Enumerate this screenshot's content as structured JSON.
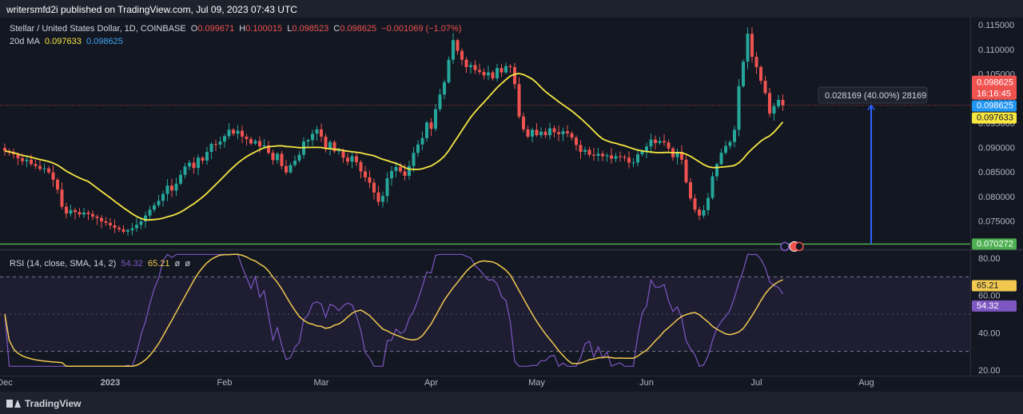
{
  "header": {
    "published": "writersmfd2i published on TradingView.com, Jul 09, 2023 07:43 UTC"
  },
  "legend": {
    "symbol": "Stellar / United States Dollar, 1D, COINBASE",
    "o_label": "O",
    "o_value": "0.099671",
    "h_label": "H",
    "h_value": "0.100015",
    "l_label": "L",
    "l_value": "0.098523",
    "c_label": "C",
    "c_value": "0.098625",
    "change": "−0.001069 (−1.07%)",
    "ma_label": "20d MA",
    "ma_value1": "0.097633",
    "ma_value2": "0.098625",
    "rsi_label": "RSI (14, close, SMA, 14, 2)",
    "rsi_value": "54.32",
    "rsi_ma_value": "65.21",
    "rsi_extra1": "ø",
    "rsi_extra2": "ø"
  },
  "measure_label": "0.028169 (40.00%) 28169",
  "price_tags": {
    "last": "0.098625",
    "countdown": "16:16:45",
    "close": "0.098625",
    "ma": "0.097633",
    "support": "0.070272",
    "rsi_ma": "65.21",
    "rsi": "54.32"
  },
  "footer": {
    "brand": "TradingView"
  },
  "colors": {
    "up": "#26a69a",
    "down": "#ef5350",
    "ma": "#f5e642",
    "rsi": "#7e57c2",
    "rsi_ma": "#f0c850",
    "support": "#4caf50",
    "measure": "#2962ff"
  },
  "chart_data": [
    {
      "type": "candlestick",
      "title": "Stellar / United States Dollar, 1D, COINBASE",
      "x_ticks": [
        "Dec",
        "2023",
        "Feb",
        "Mar",
        "Apr",
        "May",
        "Jun",
        "Jul",
        "Aug"
      ],
      "y_ticks": [
        0.075,
        0.08,
        0.085,
        0.09,
        0.095,
        0.1,
        0.105,
        0.11,
        0.115
      ],
      "y_tick_labels": [
        "0.075000",
        "0.080000",
        "0.085000",
        "0.090000",
        "0.095000",
        "0.100000",
        "0.105000",
        "0.110000",
        "0.115000"
      ],
      "ylim": [
        0.0705,
        0.1165
      ],
      "grid": false,
      "closes": [
        0.0893,
        0.0889,
        0.0886,
        0.0878,
        0.0872,
        0.0875,
        0.0866,
        0.0862,
        0.0856,
        0.0857,
        0.0849,
        0.0834,
        0.0814,
        0.0779,
        0.0765,
        0.0772,
        0.0768,
        0.0763,
        0.0767,
        0.0764,
        0.0759,
        0.0756,
        0.0749,
        0.0746,
        0.0741,
        0.0736,
        0.0733,
        0.0728,
        0.0731,
        0.0735,
        0.0742,
        0.0749,
        0.0761,
        0.0773,
        0.0782,
        0.0791,
        0.0805,
        0.0822,
        0.0812,
        0.0826,
        0.0844,
        0.0861,
        0.0869,
        0.0858,
        0.0879,
        0.0873,
        0.0891,
        0.0907,
        0.0906,
        0.0912,
        0.0923,
        0.0936,
        0.0928,
        0.0934,
        0.0922,
        0.0917,
        0.0908,
        0.0913,
        0.0902,
        0.0904,
        0.0889,
        0.0874,
        0.0887,
        0.0862,
        0.0849,
        0.0864,
        0.0873,
        0.0885,
        0.0912,
        0.0915,
        0.0928,
        0.0937,
        0.0922,
        0.0897,
        0.0911,
        0.0892,
        0.0894,
        0.0879,
        0.0871,
        0.0882,
        0.087,
        0.0851,
        0.0839,
        0.0828,
        0.0808,
        0.0789,
        0.0801,
        0.0837,
        0.0852,
        0.086,
        0.0851,
        0.0842,
        0.0862,
        0.0889,
        0.0906,
        0.0919,
        0.0951,
        0.0938,
        0.0978,
        0.1008,
        0.1033,
        0.1079,
        0.1119,
        0.1097,
        0.1079,
        0.1064,
        0.1068,
        0.1058,
        0.1054,
        0.1047,
        0.1053,
        0.1041,
        0.1062,
        0.1053,
        0.1066,
        0.1064,
        0.1029,
        0.0963,
        0.0937,
        0.0922,
        0.0936,
        0.0925,
        0.0932,
        0.0925,
        0.0939,
        0.0931,
        0.0927,
        0.0933,
        0.0929,
        0.092,
        0.0905,
        0.0891,
        0.0895,
        0.0885,
        0.0883,
        0.0887,
        0.0882,
        0.0884,
        0.0877,
        0.0882,
        0.0881,
        0.0879,
        0.0869,
        0.0869,
        0.0886,
        0.0892,
        0.0902,
        0.0916,
        0.0909,
        0.0913,
        0.091,
        0.0898,
        0.088,
        0.0891,
        0.0875,
        0.0829,
        0.0796,
        0.0773,
        0.0761,
        0.0772,
        0.0797,
        0.0841,
        0.0866,
        0.0889,
        0.0903,
        0.0911,
        0.0936,
        0.1025,
        0.1075,
        0.1132,
        0.1085,
        0.1064,
        0.1036,
        0.1011,
        0.0969,
        0.0984,
        0.0997,
        0.0986
      ],
      "ma20_visible": "from Dec to Jul",
      "annotations": {
        "support_level": 0.070272,
        "measure": "0.028169 (40.00%) 28169",
        "last_price": 0.098625,
        "ma_value": 0.097633
      }
    },
    {
      "type": "line",
      "title": "RSI (14, close, SMA, 14, 2)",
      "y_ticks": [
        20,
        40,
        60,
        80
      ],
      "y_tick_labels": [
        "20.00",
        "40.00",
        "60.00",
        "80.00"
      ],
      "ylim": [
        20,
        83
      ],
      "bands": [
        30,
        70
      ],
      "series": [
        {
          "name": "RSI",
          "last": 54.32
        },
        {
          "name": "RSI MA",
          "last": 65.21
        }
      ]
    }
  ]
}
